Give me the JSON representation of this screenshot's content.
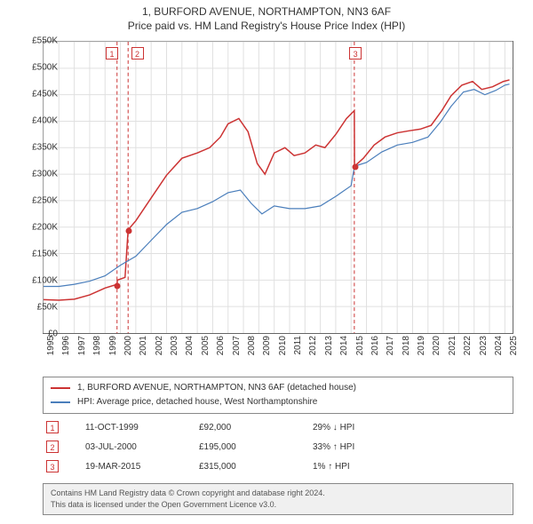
{
  "title": {
    "line1": "1, BURFORD AVENUE, NORTHAMPTON, NN3 6AF",
    "line2": "Price paid vs. HM Land Registry's House Price Index (HPI)",
    "fontsize": 12,
    "color": "#333333"
  },
  "chart": {
    "type": "line",
    "background_color": "#ffffff",
    "border_color": "#666666",
    "grid_color": "#e0e0e0",
    "xlim": [
      1995,
      2025.5
    ],
    "ylim": [
      0,
      550000
    ],
    "ytick_step": 50000,
    "yticks": [
      "£0",
      "£50K",
      "£100K",
      "£150K",
      "£200K",
      "£250K",
      "£300K",
      "£350K",
      "£400K",
      "£450K",
      "£500K",
      "£550K"
    ],
    "xticks": [
      "1995",
      "1996",
      "1997",
      "1998",
      "1999",
      "2000",
      "2001",
      "2002",
      "2003",
      "2004",
      "2005",
      "2006",
      "2007",
      "2008",
      "2009",
      "2010",
      "2011",
      "2012",
      "2013",
      "2014",
      "2015",
      "2016",
      "2017",
      "2018",
      "2019",
      "2020",
      "2021",
      "2022",
      "2023",
      "2024",
      "2025"
    ],
    "label_fontsize": 10,
    "series": [
      {
        "name": "property",
        "label": "1, BURFORD AVENUE, NORTHAMPTON, NN3 6AF (detached house)",
        "color": "#cc3333",
        "line_width": 1.5,
        "points": [
          [
            1995.0,
            63000
          ],
          [
            1996.0,
            62000
          ],
          [
            1997.0,
            64000
          ],
          [
            1998.0,
            72000
          ],
          [
            1999.0,
            85000
          ],
          [
            1999.78,
            92000
          ],
          [
            1999.8,
            100000
          ],
          [
            2000.3,
            105000
          ],
          [
            2000.5,
            195000
          ],
          [
            2001.0,
            212000
          ],
          [
            2002.0,
            255000
          ],
          [
            2003.0,
            298000
          ],
          [
            2004.0,
            330000
          ],
          [
            2005.0,
            340000
          ],
          [
            2005.8,
            350000
          ],
          [
            2006.5,
            370000
          ],
          [
            2007.0,
            395000
          ],
          [
            2007.7,
            405000
          ],
          [
            2008.3,
            380000
          ],
          [
            2008.9,
            320000
          ],
          [
            2009.4,
            300000
          ],
          [
            2010.0,
            340000
          ],
          [
            2010.7,
            350000
          ],
          [
            2011.3,
            335000
          ],
          [
            2012.0,
            340000
          ],
          [
            2012.7,
            355000
          ],
          [
            2013.3,
            350000
          ],
          [
            2014.0,
            375000
          ],
          [
            2014.7,
            405000
          ],
          [
            2015.21,
            420000
          ],
          [
            2015.22,
            315000
          ],
          [
            2015.8,
            330000
          ],
          [
            2016.5,
            355000
          ],
          [
            2017.2,
            370000
          ],
          [
            2018.0,
            378000
          ],
          [
            2018.8,
            382000
          ],
          [
            2019.5,
            385000
          ],
          [
            2020.2,
            392000
          ],
          [
            2020.9,
            420000
          ],
          [
            2021.5,
            448000
          ],
          [
            2022.2,
            468000
          ],
          [
            2022.9,
            475000
          ],
          [
            2023.5,
            460000
          ],
          [
            2024.2,
            465000
          ],
          [
            2024.9,
            475000
          ],
          [
            2025.3,
            478000
          ]
        ]
      },
      {
        "name": "hpi",
        "label": "HPI: Average price, detached house, West Northamptonshire",
        "color": "#4a7ebb",
        "line_width": 1.2,
        "points": [
          [
            1995.0,
            88000
          ],
          [
            1996.0,
            88000
          ],
          [
            1997.0,
            92000
          ],
          [
            1998.0,
            98000
          ],
          [
            1999.0,
            108000
          ],
          [
            2000.0,
            128000
          ],
          [
            2001.0,
            145000
          ],
          [
            2002.0,
            175000
          ],
          [
            2003.0,
            205000
          ],
          [
            2004.0,
            228000
          ],
          [
            2005.0,
            235000
          ],
          [
            2006.0,
            248000
          ],
          [
            2007.0,
            265000
          ],
          [
            2007.8,
            270000
          ],
          [
            2008.5,
            245000
          ],
          [
            2009.2,
            225000
          ],
          [
            2010.0,
            240000
          ],
          [
            2011.0,
            235000
          ],
          [
            2012.0,
            235000
          ],
          [
            2013.0,
            240000
          ],
          [
            2014.0,
            258000
          ],
          [
            2015.0,
            278000
          ],
          [
            2015.22,
            315000
          ],
          [
            2016.0,
            322000
          ],
          [
            2017.0,
            342000
          ],
          [
            2018.0,
            355000
          ],
          [
            2019.0,
            360000
          ],
          [
            2020.0,
            370000
          ],
          [
            2020.8,
            398000
          ],
          [
            2021.5,
            428000
          ],
          [
            2022.3,
            455000
          ],
          [
            2023.0,
            460000
          ],
          [
            2023.7,
            450000
          ],
          [
            2024.4,
            458000
          ],
          [
            2025.0,
            468000
          ],
          [
            2025.3,
            470000
          ]
        ]
      }
    ],
    "event_lines": {
      "color": "#cc3333",
      "dash": "4,3",
      "items": [
        {
          "id": "1",
          "x": 1999.78,
          "marker_y": 92000
        },
        {
          "id": "2",
          "x": 2000.5,
          "marker_y": 195000
        },
        {
          "id": "3",
          "x": 2015.21,
          "marker_y": 315000
        }
      ]
    }
  },
  "legend": {
    "border_color": "#888888",
    "fontsize": 10,
    "items": [
      {
        "color": "#cc3333",
        "label": "1, BURFORD AVENUE, NORTHAMPTON, NN3 6AF (detached house)"
      },
      {
        "color": "#4a7ebb",
        "label": "HPI: Average price, detached house, West Northamptonshire"
      }
    ]
  },
  "events_table": {
    "fontsize": 10,
    "rows": [
      {
        "id": "1",
        "date": "11-OCT-1999",
        "price": "£92,000",
        "delta": "29% ↓ HPI"
      },
      {
        "id": "2",
        "date": "03-JUL-2000",
        "price": "£195,000",
        "delta": "33% ↑ HPI"
      },
      {
        "id": "3",
        "date": "19-MAR-2015",
        "price": "£315,000",
        "delta": "1% ↑ HPI"
      }
    ]
  },
  "footer": {
    "line1": "Contains HM Land Registry data © Crown copyright and database right 2024.",
    "line2": "This data is licensed under the Open Government Licence v3.0.",
    "background_color": "#f0f0f0",
    "border_color": "#888888",
    "text_color": "#555555",
    "fontsize": 9
  }
}
